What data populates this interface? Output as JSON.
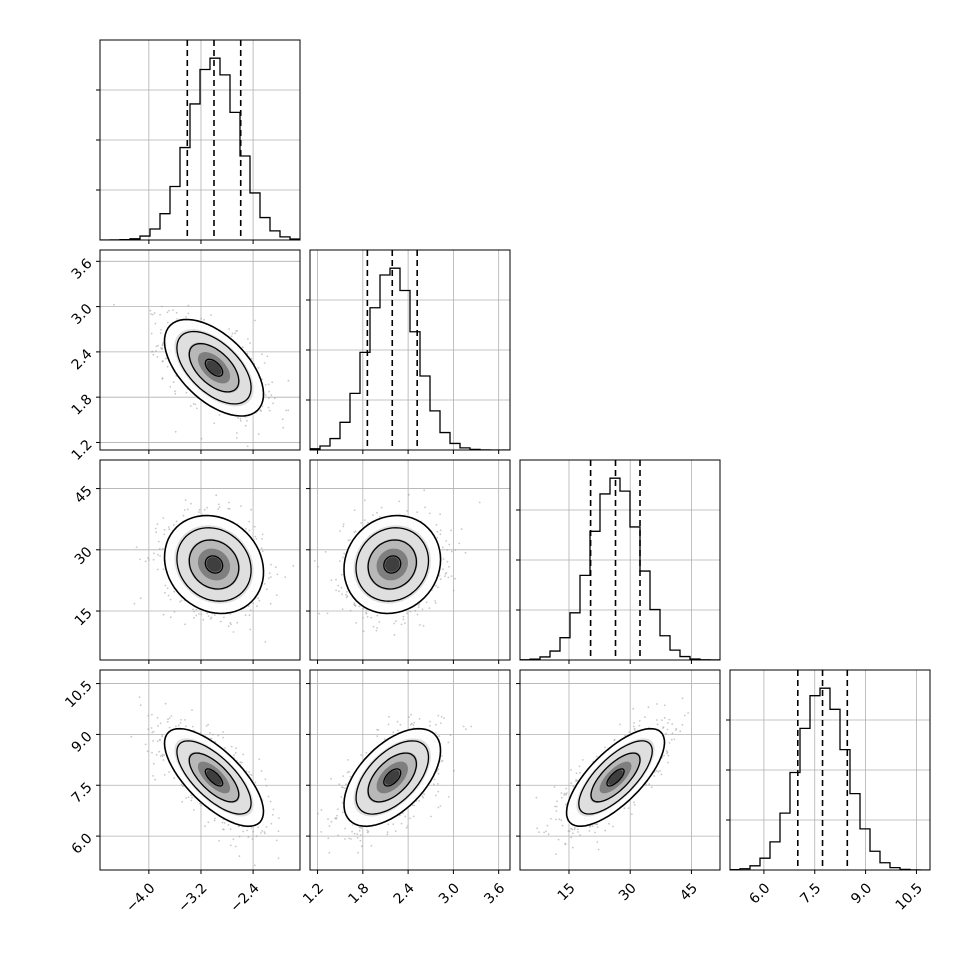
{
  "chart_data": {
    "type": "corner",
    "n_params": 4,
    "params": [
      {
        "name": "",
        "quantiles": [
          -3.41,
          -3.0,
          -2.59
        ],
        "range": [
          -4.75,
          -1.68
        ],
        "ticks": [
          -4.0,
          -3.2,
          -2.4
        ],
        "tick_labels": [
          "−4.0",
          "−3.2",
          "−2.4"
        ],
        "mean": -3.0,
        "sd": 0.38
      },
      {
        "name": "",
        "quantiles": [
          1.86,
          2.19,
          2.52
        ],
        "range": [
          1.1,
          3.75
        ],
        "ticks": [
          1.2,
          1.8,
          2.4,
          3.0,
          3.6
        ],
        "tick_labels": [
          "1.2",
          "1.8",
          "2.4",
          "3.0",
          "3.6"
        ],
        "mean": 2.19,
        "sd": 0.32
      },
      {
        "name": "",
        "quantiles": [
          20.3,
          26.4,
          32.4
        ],
        "range": [
          3.0,
          52.0
        ],
        "ticks": [
          15,
          30,
          45
        ],
        "tick_labels": [
          "15",
          "30",
          "45"
        ],
        "mean": 26.4,
        "sd": 6.0
      },
      {
        "name": "",
        "quantiles": [
          7.0,
          7.73,
          8.46
        ],
        "range": [
          5.0,
          10.9
        ],
        "ticks": [
          6.0,
          7.5,
          9.0,
          10.5
        ],
        "tick_labels": [
          "6.0",
          "7.5",
          "9.0",
          "10.5"
        ],
        "mean": 7.73,
        "sd": 0.72
      }
    ],
    "correlations": {
      "1-0": -0.55,
      "2-0": -0.15,
      "2-1": 0.1,
      "3-0": -0.7,
      "3-1": 0.55,
      "3-2": 0.72
    },
    "diagonal": "histogram (step) with dashed lines at 16th, 50th and 84th percentiles",
    "off_diagonal": "2D density: grey scatter points, grey-scale filled bins and three black contour levels",
    "grid": true
  }
}
